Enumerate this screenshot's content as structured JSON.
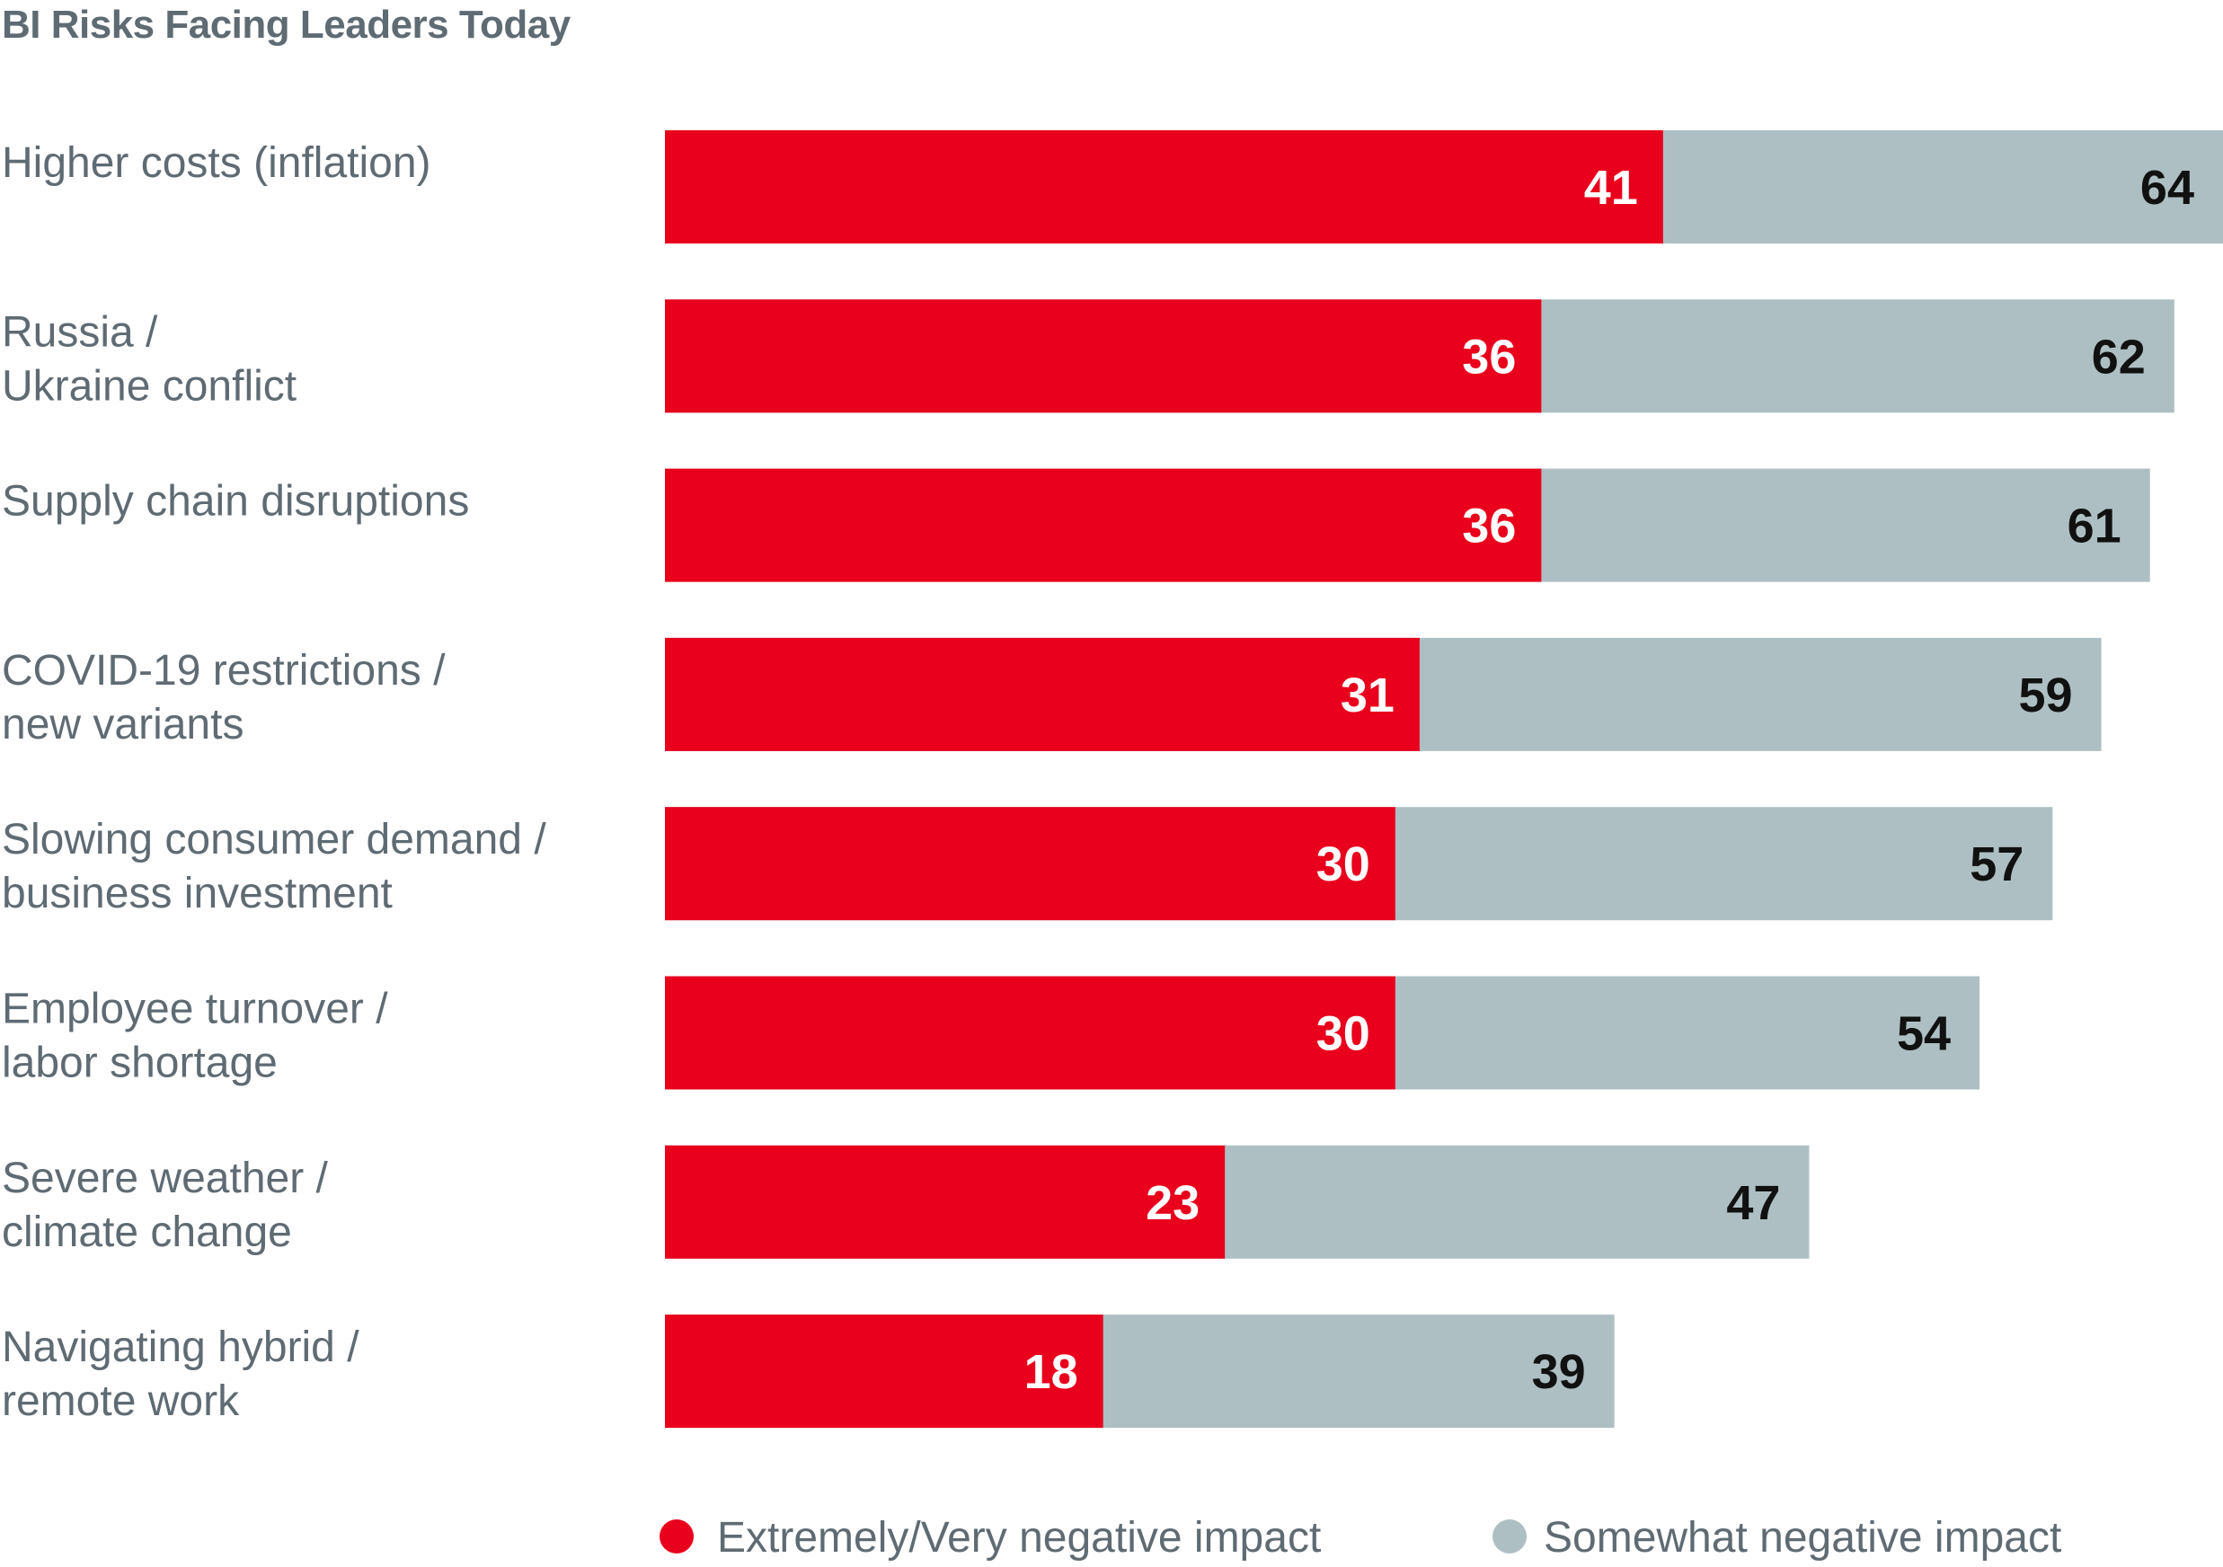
{
  "chart_data": {
    "type": "bar",
    "orientation": "horizontal",
    "title": "BI Risks Facing Leaders Today",
    "categories": [
      [
        "Higher costs (inflation)"
      ],
      [
        "Russia /",
        "Ukraine conflict"
      ],
      [
        "Supply chain disruptions"
      ],
      [
        "COVID-19 restrictions /",
        "new variants"
      ],
      [
        "Slowing consumer demand /",
        "business investment"
      ],
      [
        "Employee turnover /",
        "labor shortage"
      ],
      [
        "Severe weather /",
        "climate change"
      ],
      [
        "Navigating hybrid /",
        "remote work"
      ]
    ],
    "series": [
      {
        "name": "Extremely/Very negative impact",
        "color": "#e8001c",
        "label_color": "#ffffff",
        "values": [
          41,
          36,
          36,
          31,
          30,
          30,
          23,
          18
        ]
      },
      {
        "name": "Somewhat negative impact",
        "color": "#adbfc2",
        "label_color": "#111111",
        "values": [
          64,
          62,
          61,
          59,
          57,
          54,
          47,
          39
        ]
      }
    ],
    "value_mode": "overlay-total",
    "xlim": [
      0,
      64
    ],
    "grid": false,
    "legend_position": "bottom"
  }
}
